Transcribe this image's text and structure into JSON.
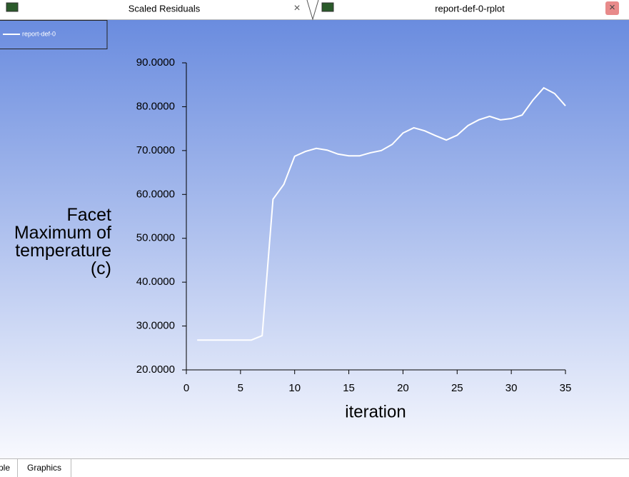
{
  "tabs": [
    {
      "title": "Scaled Residuals"
    },
    {
      "title": "report-def-0-rplot"
    }
  ],
  "bottom_tabs": [
    "ple",
    "Graphics"
  ],
  "chart_data": {
    "type": "line",
    "x_label": "iteration",
    "y_label": "Facet Maximum of temperature (c)",
    "x": [
      1,
      2,
      3,
      4,
      5,
      6,
      7,
      8,
      9,
      10,
      11,
      12,
      13,
      14,
      15,
      16,
      17,
      18,
      19,
      20,
      21,
      22,
      23,
      24,
      25,
      26,
      27,
      28,
      29,
      30,
      31,
      32,
      33,
      34,
      35
    ],
    "series": [
      {
        "name": "report-def-0",
        "color": "#ffffff",
        "values": [
          26.8,
          26.8,
          26.8,
          26.8,
          26.8,
          26.8,
          27.8,
          58.9,
          62.3,
          68.7,
          69.8,
          70.5,
          70.1,
          69.2,
          68.8,
          68.8,
          69.5,
          70.0,
          71.4,
          74.0,
          75.2,
          74.5,
          73.4,
          72.4,
          73.5,
          75.7,
          77.0,
          77.8,
          77.0,
          77.3,
          78.1,
          81.5,
          84.3,
          83.0,
          80.2
        ]
      }
    ],
    "xlim": [
      0,
      35
    ],
    "xticks": [
      0,
      5,
      10,
      15,
      20,
      25,
      30,
      35
    ],
    "ylim": [
      20,
      90
    ],
    "yticks": [
      {
        "value": 20,
        "label": "20.0000"
      },
      {
        "value": 30,
        "label": "30.0000"
      },
      {
        "value": 40,
        "label": "40.0000"
      },
      {
        "value": 50,
        "label": "50.0000"
      },
      {
        "value": 60,
        "label": "60.0000"
      },
      {
        "value": 70,
        "label": "70.0000"
      },
      {
        "value": 80,
        "label": "80.0000"
      },
      {
        "value": 90,
        "label": "90.0000"
      }
    ],
    "legend": "top-left"
  }
}
